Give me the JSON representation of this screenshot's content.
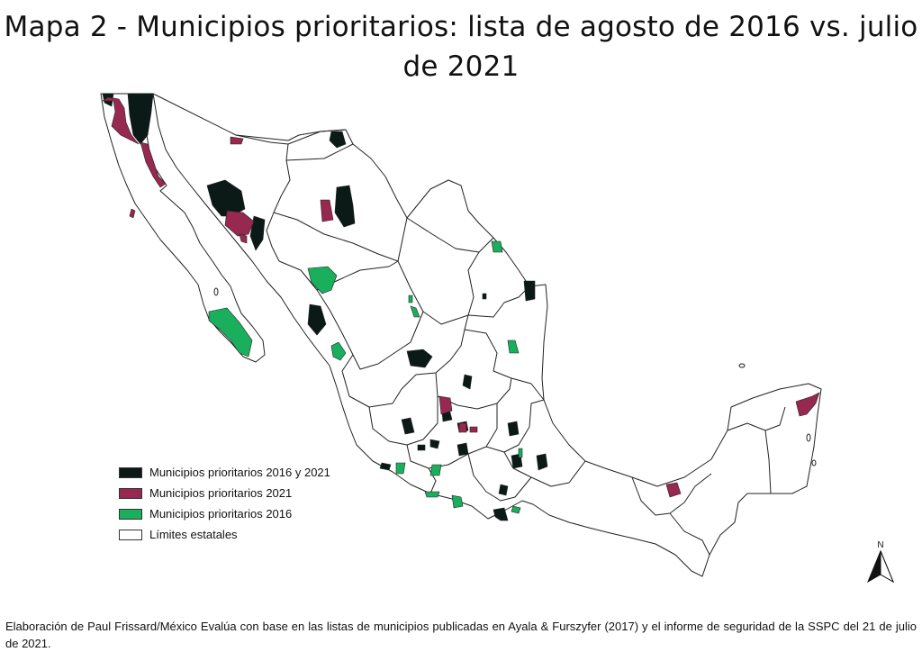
{
  "title": "Mapa 2 - Municipios prioritarios: lista de agosto de 2016 vs. julio de 2021",
  "legend": [
    {
      "label": "Municipios prioritarios 2016 y 2021",
      "color": "#0b1a17"
    },
    {
      "label": "Municipios prioritarios 2021",
      "color": "#97284f"
    },
    {
      "label": "Municipios prioritarios 2016",
      "color": "#1aaf5d"
    },
    {
      "label": "Límites estatales",
      "color": "#ffffff"
    }
  ],
  "north_label": "N",
  "caption": "Elaboración de Paul Frissard/México Evalúa con base en las listas de municipios publicadas en Ayala & Furszyfer (2017) y el informe de seguridad de la SSPC del 21 de julio de 2021.",
  "colors": {
    "both": "#0b1a17",
    "only2021": "#97284f",
    "only2016": "#1aaf5d",
    "border": "#222222"
  }
}
